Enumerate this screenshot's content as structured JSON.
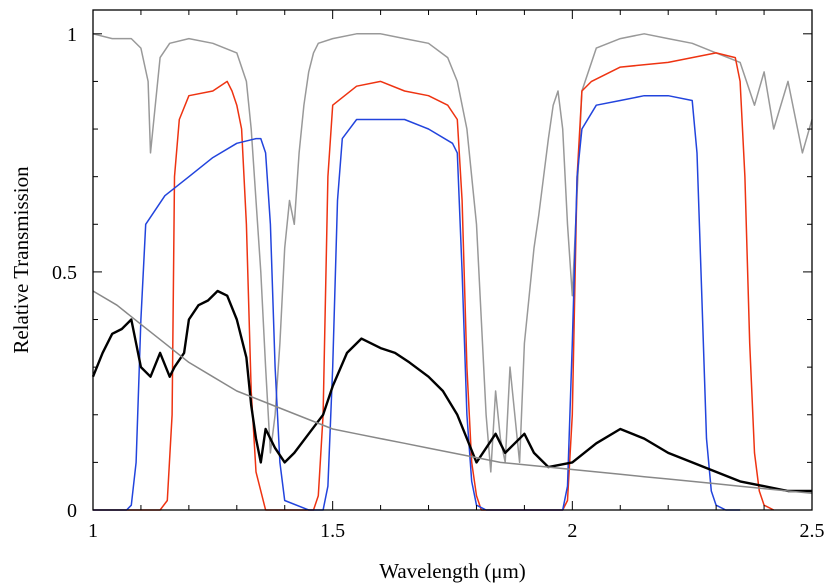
{
  "chart_data": {
    "type": "line",
    "xlabel": "Wavelength (μm)",
    "ylabel": "Relative Transmission",
    "xlim": [
      1.0,
      2.5
    ],
    "ylim": [
      0.0,
      1.05
    ],
    "x_ticks": [
      {
        "value": 1.0,
        "label": "1"
      },
      {
        "value": 1.5,
        "label": "1.5"
      },
      {
        "value": 2.0,
        "label": "2"
      },
      {
        "value": 2.5,
        "label": "2.5"
      }
    ],
    "y_ticks": [
      {
        "value": 0.0,
        "label": "0"
      },
      {
        "value": 0.5,
        "label": "0.5"
      },
      {
        "value": 1.0,
        "label": "1"
      }
    ],
    "grid": false,
    "series": [
      {
        "color": "#999999",
        "x": [
          1.0,
          1.04,
          1.08,
          1.1,
          1.115,
          1.12,
          1.13,
          1.14,
          1.16,
          1.2,
          1.25,
          1.3,
          1.32,
          1.33,
          1.34,
          1.35,
          1.36,
          1.37,
          1.38,
          1.39,
          1.4,
          1.41,
          1.42,
          1.43,
          1.44,
          1.45,
          1.46,
          1.47,
          1.5,
          1.55,
          1.6,
          1.65,
          1.7,
          1.74,
          1.76,
          1.78,
          1.8,
          1.81,
          1.82,
          1.83,
          1.84,
          1.85,
          1.86,
          1.87,
          1.88,
          1.89,
          1.9,
          1.91,
          1.92,
          1.93,
          1.94,
          1.95,
          1.96,
          1.97,
          1.98,
          1.99,
          2.0,
          2.02,
          2.05,
          2.1,
          2.15,
          2.2,
          2.25,
          2.3,
          2.35,
          2.38,
          2.4,
          2.42,
          2.45,
          2.48,
          2.5
        ],
        "values": [
          1.0,
          0.99,
          0.99,
          0.97,
          0.9,
          0.75,
          0.85,
          0.95,
          0.98,
          0.99,
          0.98,
          0.96,
          0.9,
          0.8,
          0.65,
          0.5,
          0.3,
          0.12,
          0.2,
          0.35,
          0.55,
          0.65,
          0.6,
          0.75,
          0.85,
          0.92,
          0.96,
          0.98,
          0.99,
          1.0,
          1.0,
          0.99,
          0.98,
          0.95,
          0.9,
          0.8,
          0.6,
          0.4,
          0.2,
          0.08,
          0.25,
          0.15,
          0.1,
          0.3,
          0.2,
          0.1,
          0.35,
          0.45,
          0.55,
          0.62,
          0.7,
          0.78,
          0.85,
          0.88,
          0.8,
          0.6,
          0.45,
          0.88,
          0.97,
          0.99,
          1.0,
          0.99,
          0.98,
          0.96,
          0.94,
          0.85,
          0.92,
          0.8,
          0.9,
          0.75,
          0.82
        ]
      },
      {
        "color": "#ee3311",
        "x": [
          1.0,
          1.14,
          1.155,
          1.165,
          1.17,
          1.18,
          1.2,
          1.25,
          1.28,
          1.29,
          1.3,
          1.31,
          1.32,
          1.33,
          1.34,
          1.36,
          1.46,
          1.47,
          1.48,
          1.49,
          1.5,
          1.55,
          1.6,
          1.65,
          1.7,
          1.74,
          1.76,
          1.77,
          1.78,
          1.79,
          1.8,
          1.81,
          1.98,
          1.99,
          2.0,
          2.01,
          2.02,
          2.04,
          2.1,
          2.2,
          2.3,
          2.34,
          2.35,
          2.36,
          2.37,
          2.38,
          2.39,
          2.4,
          2.42
        ],
        "values": [
          0.0,
          0.0,
          0.02,
          0.2,
          0.7,
          0.82,
          0.87,
          0.88,
          0.9,
          0.88,
          0.85,
          0.8,
          0.6,
          0.25,
          0.08,
          0.0,
          0.0,
          0.03,
          0.2,
          0.7,
          0.85,
          0.89,
          0.9,
          0.88,
          0.87,
          0.85,
          0.82,
          0.65,
          0.3,
          0.1,
          0.03,
          0.0,
          0.0,
          0.02,
          0.2,
          0.7,
          0.88,
          0.9,
          0.93,
          0.94,
          0.96,
          0.95,
          0.9,
          0.7,
          0.35,
          0.12,
          0.04,
          0.01,
          0.0
        ]
      },
      {
        "color": "#2244dd",
        "x": [
          1.0,
          1.07,
          1.08,
          1.09,
          1.1,
          1.11,
          1.15,
          1.2,
          1.25,
          1.3,
          1.34,
          1.35,
          1.36,
          1.37,
          1.38,
          1.39,
          1.4,
          1.45,
          1.48,
          1.49,
          1.5,
          1.51,
          1.52,
          1.55,
          1.6,
          1.65,
          1.7,
          1.75,
          1.76,
          1.77,
          1.78,
          1.79,
          1.8,
          1.82,
          1.98,
          1.99,
          2.0,
          2.01,
          2.02,
          2.05,
          2.1,
          2.15,
          2.2,
          2.25,
          2.26,
          2.27,
          2.28,
          2.29,
          2.3,
          2.32,
          2.35
        ],
        "values": [
          0.0,
          0.0,
          0.01,
          0.1,
          0.4,
          0.6,
          0.66,
          0.7,
          0.74,
          0.77,
          0.78,
          0.78,
          0.75,
          0.6,
          0.3,
          0.1,
          0.02,
          0.0,
          0.0,
          0.05,
          0.3,
          0.65,
          0.78,
          0.82,
          0.82,
          0.82,
          0.8,
          0.77,
          0.75,
          0.5,
          0.2,
          0.06,
          0.01,
          0.0,
          0.0,
          0.05,
          0.35,
          0.7,
          0.8,
          0.85,
          0.86,
          0.87,
          0.87,
          0.86,
          0.75,
          0.45,
          0.15,
          0.04,
          0.01,
          0.0,
          0.0
        ]
      },
      {
        "color": "#000000",
        "x": [
          1.0,
          1.02,
          1.04,
          1.06,
          1.08,
          1.09,
          1.1,
          1.12,
          1.14,
          1.16,
          1.17,
          1.19,
          1.2,
          1.22,
          1.24,
          1.26,
          1.28,
          1.3,
          1.32,
          1.33,
          1.34,
          1.35,
          1.36,
          1.38,
          1.4,
          1.42,
          1.45,
          1.48,
          1.5,
          1.53,
          1.56,
          1.58,
          1.6,
          1.63,
          1.66,
          1.7,
          1.73,
          1.76,
          1.78,
          1.8,
          1.82,
          1.84,
          1.86,
          1.88,
          1.9,
          1.92,
          1.95,
          2.0,
          2.05,
          2.1,
          2.15,
          2.2,
          2.25,
          2.3,
          2.35,
          2.4,
          2.45,
          2.5
        ],
        "values": [
          0.28,
          0.33,
          0.37,
          0.38,
          0.4,
          0.35,
          0.3,
          0.28,
          0.33,
          0.28,
          0.3,
          0.33,
          0.4,
          0.43,
          0.44,
          0.46,
          0.45,
          0.4,
          0.32,
          0.22,
          0.15,
          0.1,
          0.17,
          0.13,
          0.1,
          0.12,
          0.16,
          0.2,
          0.26,
          0.33,
          0.36,
          0.35,
          0.34,
          0.33,
          0.31,
          0.28,
          0.25,
          0.2,
          0.15,
          0.1,
          0.13,
          0.16,
          0.12,
          0.14,
          0.16,
          0.12,
          0.09,
          0.1,
          0.14,
          0.17,
          0.15,
          0.12,
          0.1,
          0.08,
          0.06,
          0.05,
          0.04,
          0.04
        ]
      },
      {
        "color": "#888888",
        "x": [
          1.0,
          1.05,
          1.1,
          1.15,
          1.2,
          1.25,
          1.3,
          1.35,
          1.4,
          1.45,
          1.5,
          1.55,
          1.6,
          1.65,
          1.7,
          1.75,
          1.8,
          1.85,
          1.9,
          1.95,
          2.0,
          2.05,
          2.1,
          2.15,
          2.2,
          2.25,
          2.3,
          2.35,
          2.4,
          2.45,
          2.5
        ],
        "values": [
          0.46,
          0.43,
          0.39,
          0.35,
          0.31,
          0.28,
          0.25,
          0.23,
          0.21,
          0.19,
          0.17,
          0.16,
          0.15,
          0.14,
          0.13,
          0.12,
          0.11,
          0.1,
          0.095,
          0.09,
          0.085,
          0.08,
          0.075,
          0.07,
          0.065,
          0.06,
          0.055,
          0.05,
          0.045,
          0.04,
          0.035
        ]
      }
    ]
  }
}
